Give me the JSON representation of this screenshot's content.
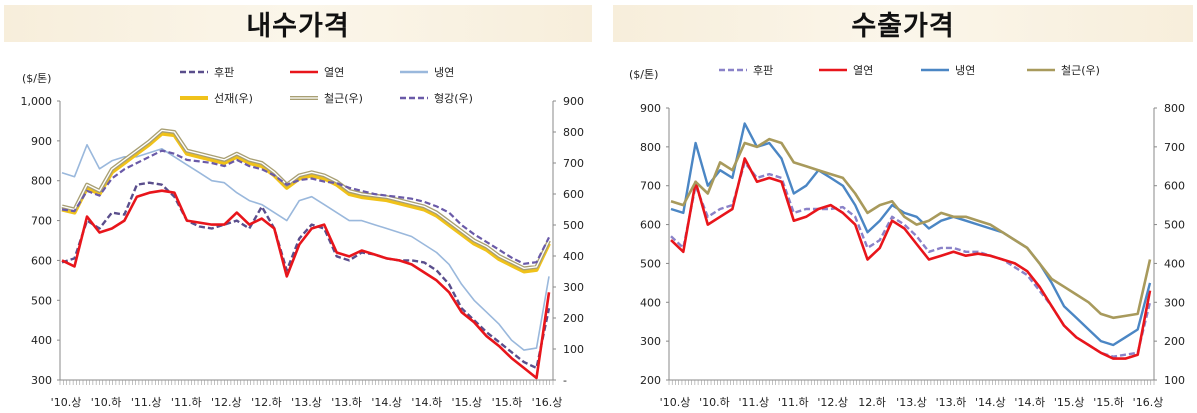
{
  "chart_data": [
    {
      "type": "line",
      "title": "내수가격",
      "unit_label": "($/톤)",
      "ylim": [
        300,
        1000
      ],
      "yticks": [
        "1,000",
        "900",
        "800",
        "700",
        "600",
        "500",
        "400",
        "300"
      ],
      "y2lim": [
        0,
        900
      ],
      "y2ticks": [
        "900",
        "800",
        "700",
        "600",
        "500",
        "400",
        "300",
        "200",
        "100",
        "-"
      ],
      "xlabels": [
        "'10.상",
        "'10.하",
        "'11.상",
        "'11.하",
        "'12.상",
        "'12.하",
        "'13.상",
        "'13.하",
        "'14.상",
        "'14.하",
        "'15.상",
        "'15.하",
        "'16.상"
      ],
      "legend": "top",
      "grid": false,
      "series": [
        {
          "name": "후판",
          "color": "#5a4e8c",
          "style": "dash",
          "width": 2.4,
          "axis": "left",
          "values": [
            595,
            605,
            700,
            680,
            720,
            715,
            790,
            795,
            790,
            760,
            700,
            685,
            680,
            690,
            700,
            680,
            735,
            680,
            575,
            655,
            690,
            680,
            610,
            600,
            620,
            615,
            605,
            600,
            600,
            595,
            575,
            540,
            480,
            450,
            420,
            395,
            370,
            345,
            330,
            480
          ]
        },
        {
          "name": "열연",
          "color": "#e8151b",
          "style": "solid",
          "width": 2.6,
          "axis": "left",
          "values": [
            600,
            585,
            710,
            670,
            680,
            700,
            760,
            770,
            775,
            770,
            700,
            695,
            690,
            690,
            720,
            690,
            705,
            680,
            560,
            640,
            680,
            690,
            620,
            610,
            625,
            615,
            605,
            600,
            590,
            570,
            550,
            520,
            470,
            445,
            410,
            385,
            355,
            330,
            305,
            520
          ]
        },
        {
          "name": "냉연",
          "color": "#9ab8dc",
          "style": "solid",
          "width": 1.6,
          "axis": "left",
          "values": [
            820,
            810,
            890,
            830,
            850,
            860,
            860,
            870,
            880,
            860,
            840,
            820,
            800,
            795,
            770,
            750,
            740,
            720,
            700,
            750,
            760,
            740,
            720,
            700,
            700,
            690,
            680,
            670,
            660,
            640,
            620,
            590,
            540,
            500,
            470,
            440,
            400,
            375,
            380,
            560
          ]
        },
        {
          "name": "선재(우)",
          "color": "#f0c21a",
          "style": "solid",
          "width": 4,
          "axis": "right",
          "values": [
            550,
            540,
            620,
            600,
            670,
            700,
            730,
            760,
            795,
            790,
            730,
            720,
            710,
            700,
            720,
            700,
            690,
            660,
            620,
            650,
            660,
            650,
            630,
            600,
            590,
            585,
            580,
            570,
            560,
            550,
            530,
            500,
            470,
            440,
            420,
            390,
            370,
            350,
            355,
            440
          ]
        },
        {
          "name": "철근(우)",
          "color": "#a89f73",
          "style": "double",
          "width": 4,
          "axis": "right",
          "values": [
            560,
            550,
            630,
            610,
            680,
            710,
            740,
            770,
            805,
            800,
            740,
            730,
            720,
            710,
            730,
            710,
            700,
            670,
            630,
            660,
            670,
            660,
            640,
            610,
            600,
            595,
            590,
            580,
            570,
            560,
            540,
            510,
            480,
            450,
            430,
            400,
            380,
            360,
            365,
            450
          ]
        },
        {
          "name": "형강(우)",
          "color": "#6a5aa8",
          "style": "dash",
          "width": 2.2,
          "axis": "right",
          "values": [
            550,
            545,
            610,
            595,
            650,
            680,
            700,
            720,
            740,
            730,
            710,
            705,
            700,
            690,
            710,
            690,
            680,
            660,
            630,
            645,
            650,
            640,
            635,
            620,
            610,
            600,
            595,
            590,
            585,
            575,
            560,
            540,
            500,
            470,
            445,
            420,
            395,
            375,
            380,
            460
          ]
        }
      ]
    },
    {
      "type": "line",
      "title": "수출가격",
      "unit_label": "($/톤)",
      "ylim": [
        200,
        900
      ],
      "yticks": [
        "900",
        "800",
        "700",
        "600",
        "500",
        "400",
        "300",
        "200"
      ],
      "y2lim": [
        100,
        800
      ],
      "y2ticks": [
        "800",
        "700",
        "600",
        "500",
        "400",
        "300",
        "200",
        "100"
      ],
      "xlabels": [
        "'10.상",
        "'10.하",
        "'11.상",
        "'11.하",
        "'12.상",
        "12.하",
        "'13.상",
        "'13.하",
        "'14.상",
        "'14.하",
        "'15.상",
        "'15.하",
        "'16.상"
      ],
      "legend": "top",
      "grid": false,
      "series": [
        {
          "name": "후판",
          "color": "#8a82c8",
          "style": "dash",
          "width": 2.4,
          "axis": "left",
          "values": [
            570,
            540,
            700,
            620,
            640,
            650,
            760,
            720,
            730,
            720,
            630,
            640,
            640,
            640,
            645,
            620,
            540,
            560,
            620,
            600,
            570,
            530,
            540,
            540,
            530,
            530,
            520,
            510,
            490,
            470,
            430,
            390,
            340,
            310,
            290,
            270,
            260,
            265,
            270,
            400
          ]
        },
        {
          "name": "열연",
          "color": "#e8151b",
          "style": "solid",
          "width": 2.6,
          "axis": "left",
          "values": [
            560,
            530,
            710,
            600,
            620,
            640,
            770,
            710,
            720,
            710,
            610,
            620,
            640,
            650,
            630,
            600,
            510,
            540,
            610,
            590,
            550,
            510,
            520,
            530,
            520,
            525,
            520,
            510,
            500,
            480,
            440,
            390,
            340,
            310,
            290,
            270,
            255,
            255,
            265,
            430
          ]
        },
        {
          "name": "냉연",
          "color": "#4b86c4",
          "style": "solid",
          "width": 2.4,
          "axis": "left",
          "values": [
            640,
            630,
            810,
            700,
            740,
            720,
            860,
            800,
            810,
            770,
            680,
            700,
            740,
            720,
            700,
            650,
            580,
            610,
            650,
            630,
            620,
            590,
            610,
            620,
            610,
            600,
            590,
            580,
            560,
            540,
            500,
            450,
            390,
            360,
            330,
            300,
            290,
            310,
            330,
            450
          ]
        },
        {
          "name": "철근(우)",
          "color": "#a89a5c",
          "style": "solid",
          "width": 2.6,
          "axis": "right",
          "values": [
            560,
            550,
            610,
            580,
            660,
            640,
            710,
            700,
            720,
            710,
            660,
            650,
            640,
            630,
            620,
            580,
            530,
            550,
            560,
            520,
            500,
            510,
            530,
            520,
            520,
            510,
            500,
            480,
            460,
            440,
            400,
            360,
            340,
            320,
            300,
            270,
            260,
            265,
            270,
            410
          ]
        }
      ]
    }
  ]
}
